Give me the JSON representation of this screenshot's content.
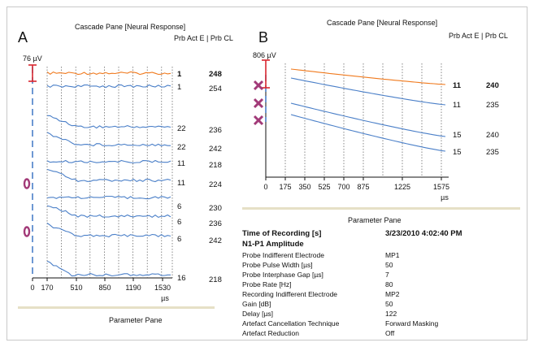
{
  "panelA": {
    "label": "A",
    "title": "Cascade Pane [Neural Response]",
    "header": "Prb Act E  | Prb CL",
    "scale_label": "76 µV",
    "x_ticks": [
      "0",
      "170",
      "510",
      "850",
      "1190",
      "1530"
    ],
    "x_unit": "µs",
    "rows": [
      {
        "act": "1",
        "cl": "248",
        "bold": true
      },
      {
        "act": "1",
        "cl": "254",
        "bold": false
      },
      {
        "act": "22",
        "cl": "236",
        "bold": false
      },
      {
        "act": "22",
        "cl": "242",
        "bold": false
      },
      {
        "act": "11",
        "cl": "218",
        "bold": false
      },
      {
        "act": "11",
        "cl": "224",
        "bold": false
      },
      {
        "act": "6",
        "cl": "230",
        "bold": false
      },
      {
        "act": "6",
        "cl": "236",
        "bold": false
      },
      {
        "act": "6",
        "cl": "242",
        "bold": false
      },
      {
        "act": "16",
        "cl": "218",
        "bold": false
      }
    ],
    "parameter_pane_title": "Parameter Pane"
  },
  "panelB": {
    "label": "B",
    "title": "Cascade Pane [Neural Response]",
    "header": "Prb Act E  | Prb CL",
    "scale_label": "806 µV",
    "x_ticks": [
      "0",
      "175",
      "350",
      "525",
      "700",
      "875",
      "1225",
      "1575"
    ],
    "x_unit": "µs",
    "rows": [
      {
        "act": "11",
        "cl": "240",
        "bold": true
      },
      {
        "act": "11",
        "cl": "235",
        "bold": false
      },
      {
        "act": "15",
        "cl": "240",
        "bold": false
      },
      {
        "act": "15",
        "cl": "235",
        "bold": false
      }
    ]
  },
  "parameter_pane": {
    "title": "Parameter Pane",
    "rows": [
      {
        "label": "Time of Recording [s]",
        "value": "3/23/2010 4:02:40 PM",
        "bold": true
      },
      {
        "label": "N1-P1 Amplitude",
        "value": "",
        "bold": true
      },
      {
        "label": "Probe Indifferent Electrode",
        "value": "MP1",
        "bold": false
      },
      {
        "label": "Probe Pulse Width [µs]",
        "value": "50",
        "bold": false
      },
      {
        "label": "Probe Interphase Gap [µs]",
        "value": "7",
        "bold": false
      },
      {
        "label": "Probe Rate [Hz]",
        "value": "80",
        "bold": false
      },
      {
        "label": "Recording Indifferent Electrode",
        "value": "MP2",
        "bold": false
      },
      {
        "label": "Gain [dB]",
        "value": "50",
        "bold": false
      },
      {
        "label": "Delay [µs]",
        "value": "122",
        "bold": false
      },
      {
        "label": "Artefact Cancellation Technique",
        "value": "Forward Masking",
        "bold": false
      },
      {
        "label": "Artefact Reduction",
        "value": "Off",
        "bold": false
      }
    ]
  },
  "colors": {
    "trace_highlight": "#f07a1e",
    "trace": "#4a7fc8",
    "scale_bar": "#d8262f",
    "marker": "#a23a78",
    "separator": "#e6e0c6"
  }
}
